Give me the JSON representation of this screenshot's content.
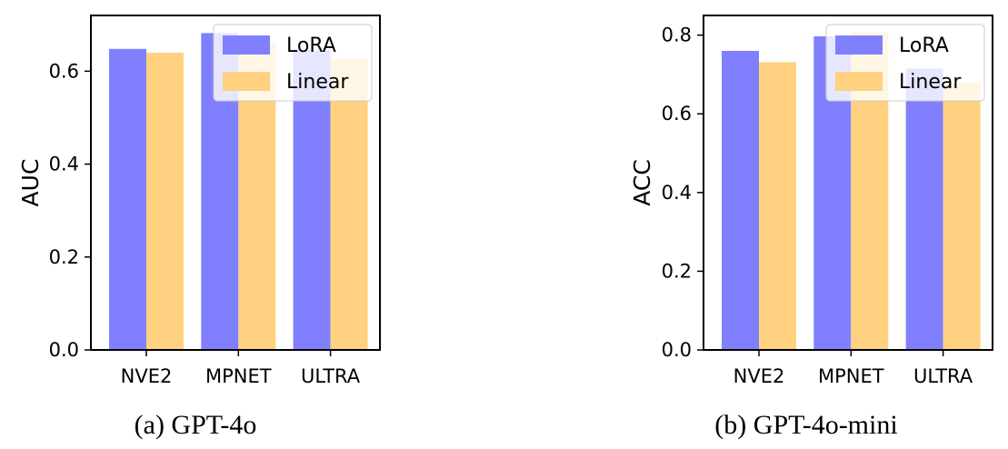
{
  "chart_data": [
    {
      "type": "bar",
      "caption": "(a) GPT-4o",
      "ylabel": "AUC",
      "categories": [
        "NVE2",
        "MPNET",
        "ULTRA"
      ],
      "series": [
        {
          "name": "LoRA",
          "values": [
            0.648,
            0.682,
            0.645
          ],
          "color": "#8080ff"
        },
        {
          "name": "Linear",
          "values": [
            0.64,
            0.662,
            0.627
          ],
          "color": "#ffd180"
        }
      ],
      "ylim": [
        0,
        0.72
      ],
      "yticks": [
        "0.0",
        "0.2",
        "0.4",
        "0.6"
      ],
      "ytick_values": [
        0,
        0.2,
        0.4,
        0.6
      ],
      "legend_position": "top-right",
      "grid": false
    },
    {
      "type": "bar",
      "caption": "(b) GPT-4o-mini",
      "ylabel": "ACC",
      "categories": [
        "NVE2",
        "MPNET",
        "ULTRA"
      ],
      "series": [
        {
          "name": "LoRA",
          "values": [
            0.76,
            0.797,
            0.715
          ],
          "color": "#8080ff"
        },
        {
          "name": "Linear",
          "values": [
            0.731,
            0.808,
            0.68
          ],
          "color": "#ffd180"
        }
      ],
      "ylim": [
        0,
        0.85
      ],
      "yticks": [
        "0.0",
        "0.2",
        "0.4",
        "0.6",
        "0.8"
      ],
      "ytick_values": [
        0,
        0.2,
        0.4,
        0.6,
        0.8
      ],
      "legend_position": "top-right",
      "grid": false
    }
  ]
}
